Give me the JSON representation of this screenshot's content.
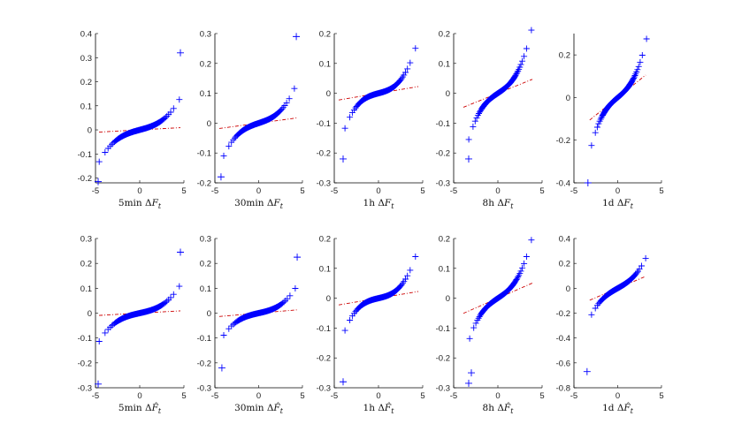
{
  "colors": {
    "points": "#0000ff",
    "reference_line": "#cc0000",
    "axes": "#000000"
  },
  "chart_data": [
    {
      "type": "scatter",
      "xlabel": "5min ΔF_t",
      "xlim": [
        -5,
        5
      ],
      "ylim": [
        -0.22,
        0.4
      ],
      "xticks": [
        -5,
        0,
        5
      ],
      "yticks": [
        -0.2,
        -0.1,
        0,
        0.1,
        0.2,
        0.3,
        0.4
      ],
      "xtick_labels": [
        "-5",
        "0",
        "5"
      ],
      "ytick_labels": [
        "-0.2",
        "-0.1",
        "0",
        "0.1",
        "0.2",
        "0.3",
        "0.4"
      ],
      "qq": {
        "scale": 0.01,
        "cubic": 0.0009,
        "xmin": -4.6,
        "xmax": 4.5
      },
      "reference_line": {
        "slope": 0.002,
        "x": [
          -4.6,
          4.6
        ]
      },
      "outliers": [
        [
          4.6,
          0.32
        ],
        [
          -4.7,
          -0.215
        ]
      ]
    },
    {
      "type": "scatter",
      "xlabel": "30min ΔF_t",
      "xlim": [
        -5,
        5
      ],
      "ylim": [
        -0.2,
        0.3
      ],
      "xticks": [
        -5,
        0,
        5
      ],
      "yticks": [
        -0.2,
        -0.1,
        0,
        0.1,
        0.2,
        0.3
      ],
      "xtick_labels": [
        "-5",
        "0",
        "5"
      ],
      "ytick_labels": [
        "-0.2",
        "-0.1",
        "0",
        "0.1",
        "0.2",
        "0.3"
      ],
      "qq": {
        "scale": 0.01,
        "cubic": 0.0011,
        "xmin": -4.0,
        "xmax": 4.1
      },
      "reference_line": {
        "slope": 0.004,
        "x": [
          -4.5,
          4.5
        ]
      },
      "outliers": [
        [
          4.3,
          0.29
        ],
        [
          -4.3,
          -0.18
        ]
      ]
    },
    {
      "type": "scatter",
      "xlabel": "1h ΔF_t",
      "xlim": [
        -5,
        5
      ],
      "ylim": [
        -0.3,
        0.2
      ],
      "xticks": [
        -5,
        0,
        5
      ],
      "yticks": [
        -0.3,
        -0.2,
        -0.1,
        0,
        0.1,
        0.2
      ],
      "xtick_labels": [
        "-5",
        "0",
        "5"
      ],
      "ytick_labels": [
        "-0.3",
        "-0.2",
        "-0.1",
        "0",
        "0.1",
        "0.2"
      ],
      "qq": {
        "scale": 0.008,
        "cubic": 0.0016,
        "xmin": -3.8,
        "xmax": 4.2
      },
      "reference_line": {
        "slope": 0.005,
        "x": [
          -4.5,
          4.5
        ]
      },
      "outliers": [
        [
          -4.0,
          -0.22
        ]
      ]
    },
    {
      "type": "scatter",
      "xlabel": "8h ΔF_t",
      "xlim": [
        -5,
        5
      ],
      "ylim": [
        -0.3,
        0.2
      ],
      "xticks": [
        -5,
        0,
        5
      ],
      "yticks": [
        -0.3,
        -0.2,
        -0.1,
        0,
        0.1,
        0.2
      ],
      "xtick_labels": [
        "-5",
        "0",
        "5"
      ],
      "ytick_labels": [
        "-0.3",
        "-0.2",
        "-0.1",
        "0",
        "0.1",
        "0.2"
      ],
      "qq": {
        "scale": 0.02,
        "cubic": 0.0025,
        "xmin": -3.3,
        "xmax": 3.8
      },
      "reference_line": {
        "slope": 0.012,
        "x": [
          -3.9,
          3.9
        ]
      },
      "outliers": [
        [
          -3.3,
          -0.22
        ]
      ]
    },
    {
      "type": "scatter",
      "xlabel": "1d ΔF_t",
      "xlim": [
        -5,
        5
      ],
      "ylim": [
        -0.4,
        0.3
      ],
      "xticks": [
        -5,
        0,
        5
      ],
      "yticks": [
        -0.4,
        -0.2,
        0,
        0.2
      ],
      "xtick_labels": [
        "-5",
        "0",
        "5"
      ],
      "ytick_labels": [
        "-0.4",
        "-0.2",
        "0",
        "0.2"
      ],
      "qq": {
        "scale": 0.035,
        "cubic": 0.0045,
        "xmin": -3.0,
        "xmax": 3.3
      },
      "reference_line": {
        "slope": 0.033,
        "x": [
          -3.2,
          3.2
        ]
      },
      "outliers": [
        [
          -3.4,
          -0.4
        ]
      ]
    },
    {
      "type": "scatter",
      "xlabel": "5min ΔF̂_t",
      "xlim": [
        -5,
        5
      ],
      "ylim": [
        -0.3,
        0.3
      ],
      "xticks": [
        -5,
        0,
        5
      ],
      "yticks": [
        -0.3,
        -0.2,
        -0.1,
        0,
        0.1,
        0.2,
        0.3
      ],
      "xtick_labels": [
        "-5",
        "0",
        "5"
      ],
      "ytick_labels": [
        "-0.3",
        "-0.2",
        "-0.1",
        "0",
        "0.1",
        "0.2",
        "0.3"
      ],
      "qq": {
        "scale": 0.008,
        "cubic": 0.0008,
        "xmin": -4.6,
        "xmax": 4.5
      },
      "reference_line": {
        "slope": 0.002,
        "x": [
          -4.6,
          4.6
        ]
      },
      "outliers": [
        [
          4.6,
          0.245
        ],
        [
          -4.7,
          -0.285
        ]
      ]
    },
    {
      "type": "scatter",
      "xlabel": "30min ΔF̂_t",
      "xlim": [
        -5,
        5
      ],
      "ylim": [
        -0.3,
        0.3
      ],
      "xticks": [
        -5,
        0,
        5
      ],
      "yticks": [
        -0.3,
        -0.2,
        -0.1,
        0,
        0.1,
        0.2,
        0.3
      ],
      "xtick_labels": [
        "-5",
        "0",
        "5"
      ],
      "ytick_labels": [
        "-0.3",
        "-0.2",
        "-0.1",
        "0",
        "0.1",
        "0.2",
        "0.3"
      ],
      "qq": {
        "scale": 0.008,
        "cubic": 0.0009,
        "xmin": -4.0,
        "xmax": 4.2
      },
      "reference_line": {
        "slope": 0.003,
        "x": [
          -4.5,
          4.5
        ]
      },
      "outliers": [
        [
          4.4,
          0.225
        ],
        [
          -4.2,
          -0.22
        ]
      ]
    },
    {
      "type": "scatter",
      "xlabel": "1h ΔF̂_t",
      "xlim": [
        -5,
        5
      ],
      "ylim": [
        -0.3,
        0.2
      ],
      "xticks": [
        -5,
        0,
        5
      ],
      "yticks": [
        -0.3,
        -0.2,
        -0.1,
        0,
        0.1,
        0.2
      ],
      "xtick_labels": [
        "-5",
        "0",
        "5"
      ],
      "ytick_labels": [
        "-0.3",
        "-0.2",
        "-0.1",
        "0",
        "0.1",
        "0.2"
      ],
      "qq": {
        "scale": 0.007,
        "cubic": 0.0015,
        "xmin": -3.8,
        "xmax": 4.2
      },
      "reference_line": {
        "slope": 0.005,
        "x": [
          -4.5,
          4.5
        ]
      },
      "outliers": [
        [
          -4.0,
          -0.28
        ]
      ]
    },
    {
      "type": "scatter",
      "xlabel": "8h ΔF̂_t",
      "xlim": [
        -5,
        5
      ],
      "ylim": [
        -0.3,
        0.2
      ],
      "xticks": [
        -5,
        0,
        5
      ],
      "yticks": [
        -0.3,
        -0.2,
        -0.1,
        0,
        0.1,
        0.2
      ],
      "xtick_labels": [
        "-5",
        "0",
        "5"
      ],
      "ytick_labels": [
        "-0.3",
        "-0.2",
        "-0.1",
        "0",
        "0.1",
        "0.2"
      ],
      "qq": {
        "scale": 0.02,
        "cubic": 0.0022,
        "xmin": -3.2,
        "xmax": 3.8
      },
      "reference_line": {
        "slope": 0.013,
        "x": [
          -3.9,
          3.9
        ]
      },
      "outliers": [
        [
          -3.3,
          -0.285
        ],
        [
          -3.0,
          -0.25
        ]
      ]
    },
    {
      "type": "scatter",
      "xlabel": "1d ΔF̂_t",
      "xlim": [
        -5,
        5
      ],
      "ylim": [
        -0.8,
        0.4
      ],
      "xticks": [
        -5,
        0,
        5
      ],
      "yticks": [
        -0.8,
        -0.6,
        -0.4,
        -0.2,
        0,
        0.2,
        0.4
      ],
      "xtick_labels": [
        "-5",
        "0",
        "5"
      ],
      "ytick_labels": [
        "-0.8",
        "-0.6",
        "-0.4",
        "-0.2",
        "0",
        "0.2",
        "0.4"
      ],
      "qq": {
        "scale": 0.04,
        "cubic": 0.0035,
        "xmin": -3.0,
        "xmax": 3.2
      },
      "reference_line": {
        "slope": 0.03,
        "x": [
          -3.2,
          3.2
        ]
      },
      "outliers": [
        [
          -3.5,
          -0.67
        ]
      ]
    }
  ]
}
